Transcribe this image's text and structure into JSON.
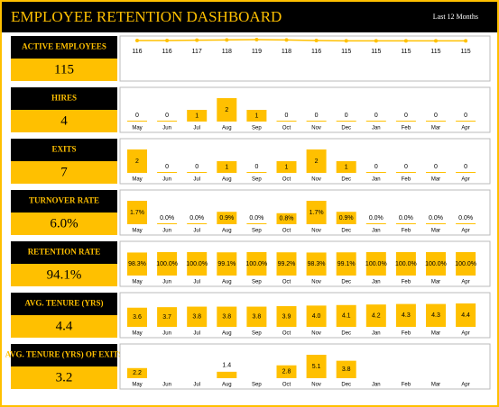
{
  "header": {
    "title": "EMPLOYEE RETENTION DASHBOARD",
    "period": "Last 12 Months"
  },
  "kpis": [
    {
      "label": "ACTIVE EMPLOYEES",
      "value": "115"
    },
    {
      "label": "HIRES",
      "value": "4"
    },
    {
      "label": "EXITS",
      "value": "7"
    },
    {
      "label": "TURNOVER RATE",
      "value": "6.0%"
    },
    {
      "label": "RETENTION RATE",
      "value": "94.1%"
    },
    {
      "label": "AVG. TENURE (YRS)",
      "value": "4.4"
    },
    {
      "label": "AVG. TENURE (YRS) OF EXITS",
      "value": "3.2"
    }
  ],
  "chart_data": [
    {
      "type": "line",
      "color": "#FFC000",
      "values": [
        116,
        116,
        117,
        118,
        119,
        118,
        116,
        115,
        115,
        115,
        115,
        115
      ]
    },
    {
      "type": "bar",
      "color": "#FFC000",
      "categories": [
        "May",
        "Jun",
        "Jul",
        "Aug",
        "Sep",
        "Oct",
        "Nov",
        "Dec",
        "Jan",
        "Feb",
        "Mar",
        "Apr"
      ],
      "values": [
        0,
        0,
        1,
        2,
        1,
        0,
        0,
        0,
        0,
        0,
        0,
        0
      ]
    },
    {
      "type": "bar",
      "color": "#FFC000",
      "categories": [
        "May",
        "Jun",
        "Jul",
        "Aug",
        "Sep",
        "Oct",
        "Nov",
        "Dec",
        "Jan",
        "Feb",
        "Mar",
        "Apr"
      ],
      "values": [
        2,
        0,
        0,
        1,
        0,
        1,
        2,
        1,
        0,
        0,
        0,
        0
      ]
    },
    {
      "type": "bar",
      "color": "#FFC000",
      "categories": [
        "May",
        "Jun",
        "Jul",
        "Aug",
        "Sep",
        "Oct",
        "Nov",
        "Dec",
        "Jan",
        "Feb",
        "Mar",
        "Apr"
      ],
      "values": [
        1.7,
        0.0,
        0.0,
        0.9,
        0.0,
        0.8,
        1.7,
        0.9,
        0.0,
        0.0,
        0.0,
        0.0
      ],
      "value_labels": [
        "1.7%",
        "0.0%",
        "0.0%",
        "0.9%",
        "0.0%",
        "0.8%",
        "1.7%",
        "0.9%",
        "0.0%",
        "0.0%",
        "0.0%",
        "0.0%"
      ]
    },
    {
      "type": "bar",
      "color": "#FFC000",
      "categories": [
        "May",
        "Jun",
        "Jul",
        "Aug",
        "Sep",
        "Oct",
        "Nov",
        "Dec",
        "Jan",
        "Feb",
        "Mar",
        "Apr"
      ],
      "values": [
        98.3,
        100.0,
        100.0,
        99.1,
        100.0,
        99.2,
        98.3,
        99.1,
        100.0,
        100.0,
        100.0,
        100.0
      ],
      "value_labels": [
        "98.3%",
        "100.0%",
        "100.0%",
        "99.1%",
        "100.0%",
        "99.2%",
        "98.3%",
        "99.1%",
        "100.0%",
        "100.0%",
        "100.0%",
        "100.0%"
      ]
    },
    {
      "type": "bar",
      "color": "#FFC000",
      "categories": [
        "May",
        "Jun",
        "Jul",
        "Aug",
        "Sep",
        "Oct",
        "Nov",
        "Dec",
        "Jan",
        "Feb",
        "Mar",
        "Apr"
      ],
      "values": [
        3.6,
        3.7,
        3.8,
        3.8,
        3.8,
        3.9,
        4.0,
        4.1,
        4.2,
        4.3,
        4.3,
        4.4
      ],
      "value_labels": [
        "3.6",
        "3.7",
        "3.8",
        "3.8",
        "3.8",
        "3.9",
        "4.0",
        "4.1",
        "4.2",
        "4.3",
        "4.3",
        "4.4"
      ]
    },
    {
      "type": "bar",
      "color": "#FFC000",
      "categories": [
        "May",
        "Jun",
        "Jul",
        "Aug",
        "Sep",
        "Oct",
        "Nov",
        "Dec",
        "Jan",
        "Feb",
        "Mar",
        "Apr"
      ],
      "values": [
        2.2,
        null,
        null,
        1.4,
        null,
        2.8,
        5.1,
        3.8,
        null,
        null,
        null,
        null
      ]
    }
  ]
}
